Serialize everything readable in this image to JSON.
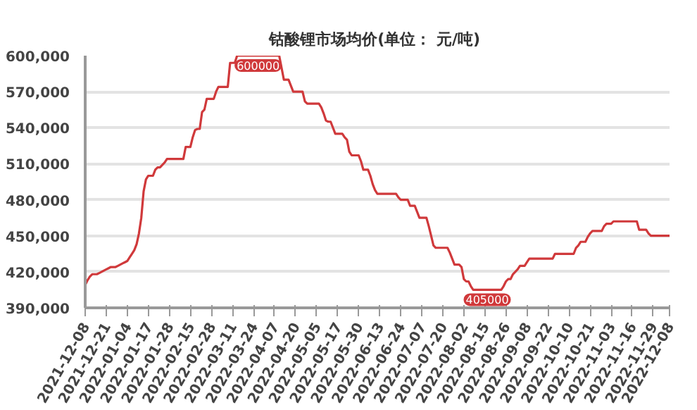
{
  "chart_data": {
    "type": "line",
    "title": "钴酸锂市场均价(单位：  元/吨)",
    "categories": [
      "2021-12-08",
      null,
      null,
      null,
      null,
      null,
      null,
      null,
      null,
      "2021-12-21",
      null,
      null,
      null,
      null,
      null,
      null,
      null,
      null,
      "2022-01-04",
      null,
      null,
      null,
      null,
      null,
      null,
      null,
      null,
      "2022-01-17",
      null,
      null,
      null,
      null,
      null,
      null,
      null,
      null,
      "2022-01-28",
      null,
      null,
      null,
      null,
      null,
      null,
      null,
      null,
      "2022-02-15",
      null,
      null,
      null,
      null,
      null,
      null,
      null,
      null,
      "2022-02-28",
      null,
      null,
      null,
      null,
      null,
      null,
      null,
      null,
      "2022-03-11",
      null,
      null,
      null,
      null,
      null,
      null,
      null,
      null,
      "2022-03-24",
      null,
      null,
      null,
      null,
      null,
      null,
      null,
      null,
      "2022-04-07",
      null,
      null,
      null,
      null,
      null,
      null,
      null,
      null,
      "2022-04-20",
      null,
      null,
      null,
      null,
      null,
      null,
      null,
      null,
      "2022-05-05",
      null,
      null,
      null,
      null,
      null,
      null,
      null,
      null,
      "2022-05-17",
      null,
      null,
      null,
      null,
      null,
      null,
      null,
      null,
      "2022-05-30",
      null,
      null,
      null,
      null,
      null,
      null,
      null,
      null,
      "2022-06-13",
      null,
      null,
      null,
      null,
      null,
      null,
      null,
      null,
      "2022-06-24",
      null,
      null,
      null,
      null,
      null,
      null,
      null,
      null,
      "2022-07-07",
      null,
      null,
      null,
      null,
      null,
      null,
      null,
      null,
      "2022-07-20",
      null,
      null,
      null,
      null,
      null,
      null,
      null,
      null,
      "2022-08-02",
      null,
      null,
      null,
      null,
      null,
      null,
      null,
      null,
      "2022-08-15",
      null,
      null,
      null,
      null,
      null,
      null,
      null,
      null,
      "2022-08-26",
      null,
      null,
      null,
      null,
      null,
      null,
      null,
      null,
      "2022-09-08",
      null,
      null,
      null,
      null,
      null,
      null,
      null,
      null,
      "2022-09-22",
      null,
      null,
      null,
      null,
      null,
      null,
      null,
      null,
      "2022-10-10",
      null,
      null,
      null,
      null,
      null,
      null,
      null,
      null,
      "2022-10-21",
      null,
      null,
      null,
      null,
      null,
      null,
      null,
      null,
      "2022-11-03",
      null,
      null,
      null,
      null,
      null,
      null,
      null,
      null,
      "2022-11-16",
      null,
      null,
      null,
      null,
      null,
      null,
      null,
      null,
      "2022-11-29",
      null,
      null,
      null,
      null,
      null,
      null,
      "2022-12-08"
    ],
    "series": [
      {
        "color": "#d0393b",
        "values": [
          409000,
          413000,
          416000,
          418000,
          418000,
          418000,
          419000,
          420000,
          421000,
          422000,
          423000,
          424000,
          424000,
          424000,
          425000,
          426000,
          427000,
          428000,
          429000,
          432000,
          435000,
          438000,
          443000,
          452000,
          465000,
          487000,
          497000,
          500000,
          500000,
          500000,
          505000,
          507000,
          507000,
          509000,
          511000,
          514000,
          514000,
          514000,
          514000,
          514000,
          514000,
          514000,
          514000,
          524000,
          524000,
          524000,
          532000,
          538000,
          539000,
          539000,
          553000,
          555000,
          564000,
          564000,
          564000,
          564000,
          570000,
          574000,
          574000,
          574000,
          574000,
          574000,
          594000,
          594000,
          594000,
          600000,
          600000,
          600000,
          600000,
          600000,
          600000,
          600000,
          600000,
          600000,
          600000,
          600000,
          600000,
          600000,
          600000,
          600000,
          600000,
          600000,
          600000,
          600000,
          590000,
          580000,
          580000,
          580000,
          575000,
          570000,
          570000,
          570000,
          570000,
          570000,
          562000,
          560000,
          560000,
          560000,
          560000,
          560000,
          560000,
          557000,
          552000,
          546000,
          545000,
          545000,
          540000,
          535000,
          535000,
          535000,
          535000,
          532000,
          530000,
          520000,
          517000,
          517000,
          517000,
          517000,
          512000,
          505000,
          505000,
          505000,
          500000,
          493000,
          488000,
          485000,
          485000,
          485000,
          485000,
          485000,
          485000,
          485000,
          485000,
          485000,
          482000,
          480000,
          480000,
          480000,
          480000,
          475000,
          475000,
          475000,
          470000,
          465000,
          465000,
          465000,
          465000,
          458000,
          450000,
          442000,
          440000,
          440000,
          440000,
          440000,
          440000,
          440000,
          436000,
          431000,
          426000,
          426000,
          426000,
          424000,
          414000,
          412000,
          412000,
          408000,
          405000,
          405000,
          405000,
          405000,
          405000,
          405000,
          405000,
          405000,
          405000,
          405000,
          405000,
          405000,
          405000,
          408000,
          412000,
          414000,
          414000,
          418000,
          420000,
          422000,
          425000,
          425000,
          425000,
          428000,
          431000,
          431000,
          431000,
          431000,
          431000,
          431000,
          431000,
          431000,
          431000,
          431000,
          431000,
          435000,
          435000,
          435000,
          435000,
          435000,
          435000,
          435000,
          435000,
          435000,
          440000,
          442000,
          445000,
          445000,
          445000,
          449000,
          452000,
          454000,
          454000,
          454000,
          454000,
          454000,
          458000,
          460000,
          460000,
          460000,
          462000,
          462000,
          462000,
          462000,
          462000,
          462000,
          462000,
          462000,
          462000,
          462000,
          462000,
          455000,
          455000,
          455000,
          455000,
          452000,
          450000,
          450000,
          450000,
          450000,
          450000,
          450000,
          450000,
          450000,
          450000
        ]
      }
    ],
    "ylim": [
      390000,
      600000
    ],
    "yticks": [
      {
        "value": 390000,
        "label": "390,000"
      },
      {
        "value": 420000,
        "label": "420,000"
      },
      {
        "value": 450000,
        "label": "450,000"
      },
      {
        "value": 480000,
        "label": "480,000"
      },
      {
        "value": 510000,
        "label": "510,000"
      },
      {
        "value": 540000,
        "label": "540,000"
      },
      {
        "value": 570000,
        "label": "570,000"
      },
      {
        "value": 600000,
        "label": "600,000"
      }
    ],
    "grid": "y",
    "marker": "none",
    "line_style": "solid",
    "annotations": [
      {
        "text": "600000",
        "y": 600000
      },
      {
        "text": "405000",
        "y": 405000
      }
    ]
  }
}
